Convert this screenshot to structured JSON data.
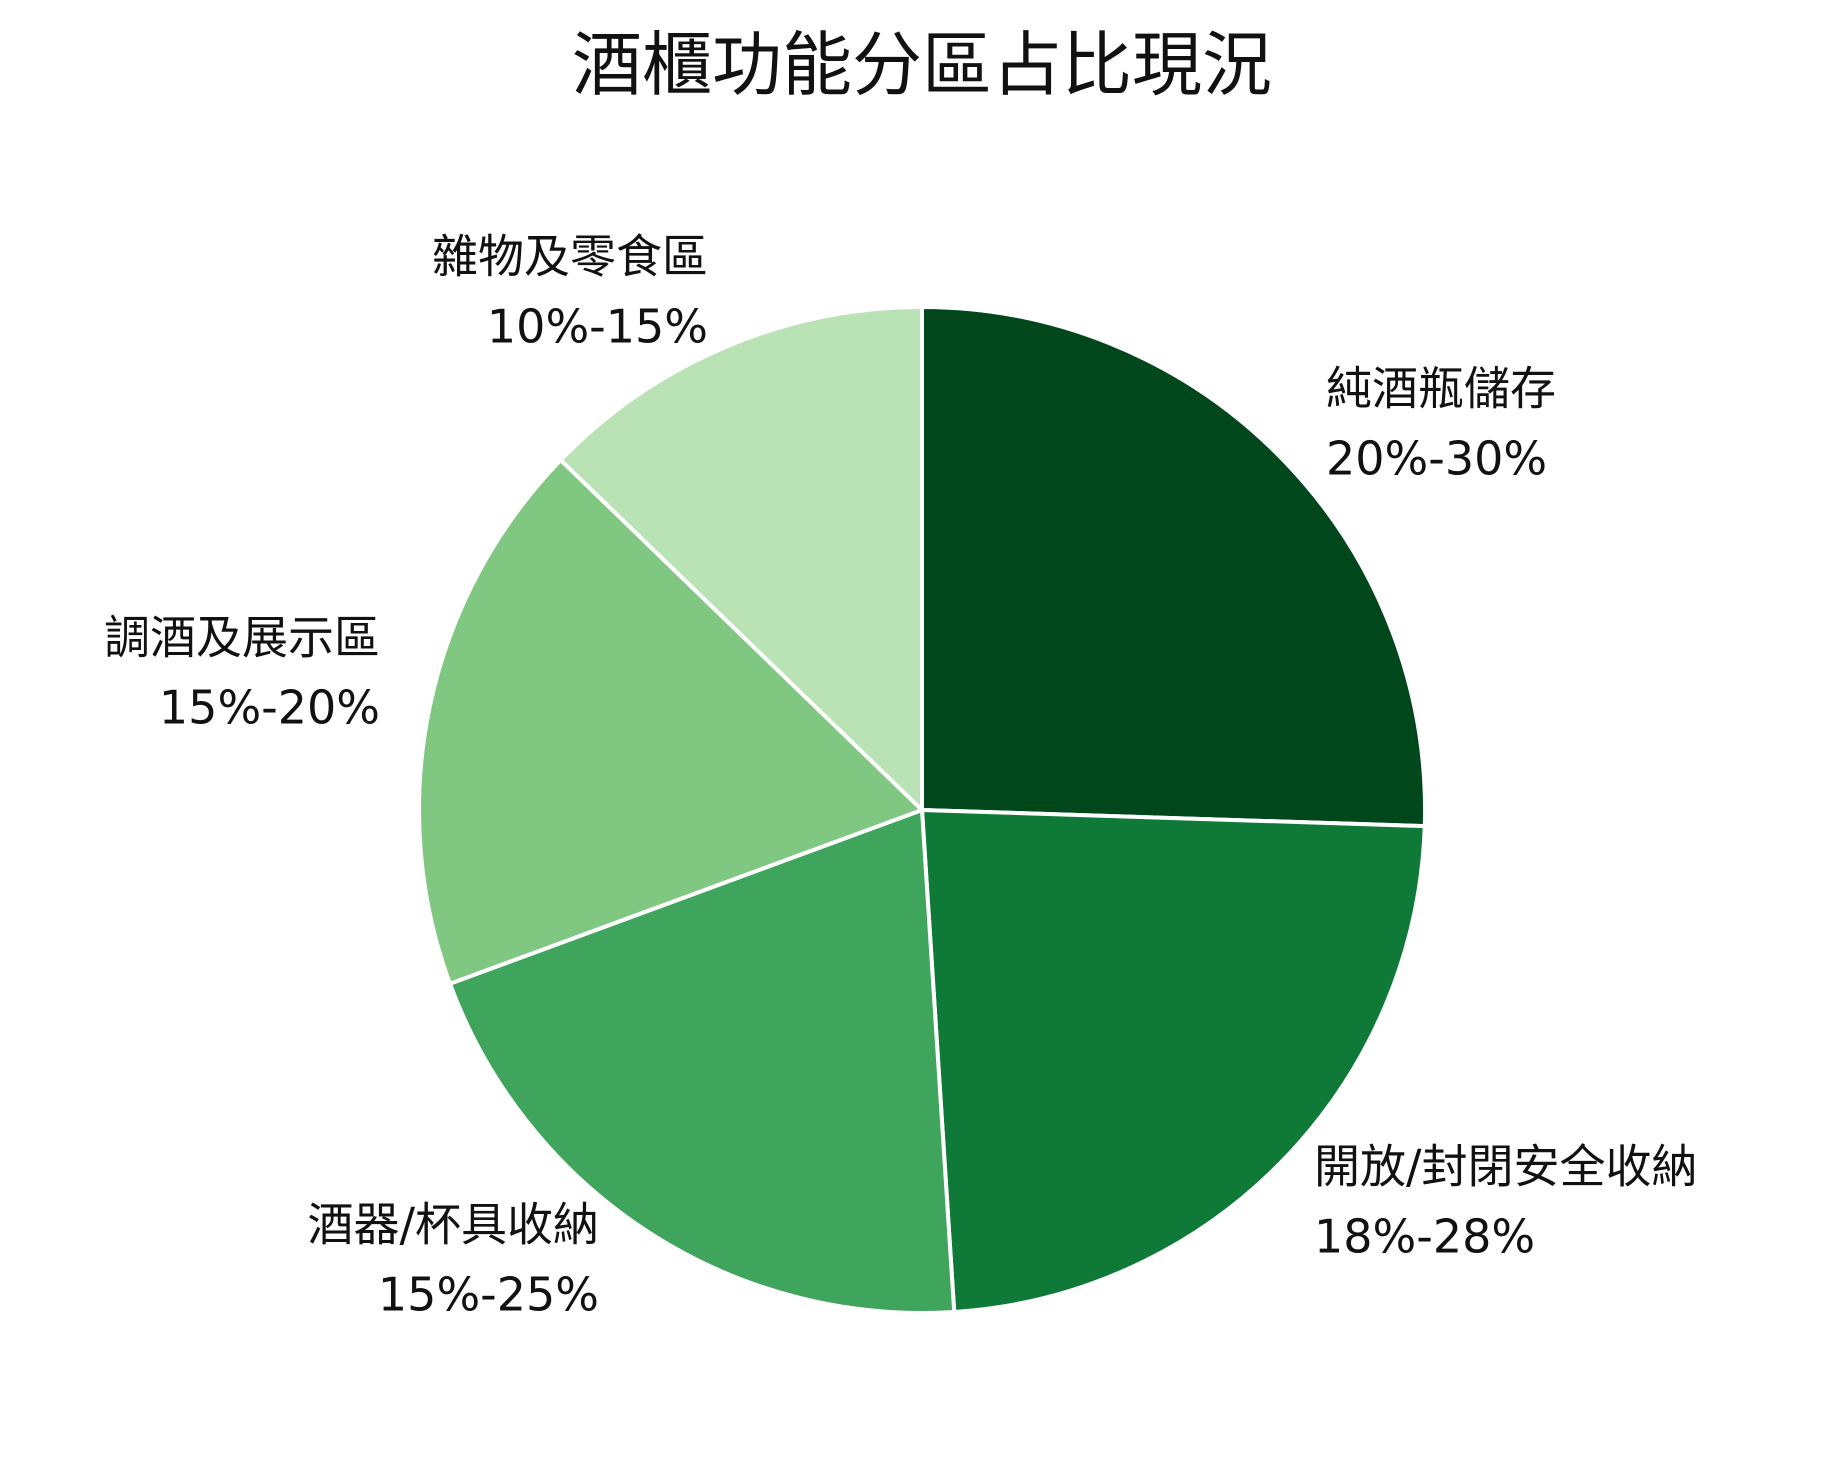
{
  "chart_data": {
    "type": "pie",
    "title": "酒櫃功能分區占比現況",
    "categories": [
      "純酒瓶儲存",
      "開放/封閉安全收納",
      "酒器/杯具收納",
      "調酒及展示區",
      "雜物及零食區"
    ],
    "values": [
      25,
      23,
      20,
      17.5,
      12.5
    ],
    "value_labels": [
      "20%-30%",
      "18%-28%",
      "15%-25%",
      "15%-20%",
      "10%-15%"
    ],
    "colors": [
      "#00471b",
      "#0f7a38",
      "#3fa45c",
      "#80c782",
      "#bae3b5"
    ]
  }
}
